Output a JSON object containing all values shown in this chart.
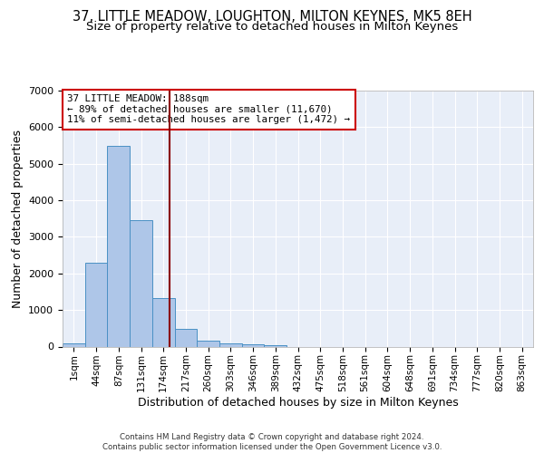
{
  "title_line1": "37, LITTLE MEADOW, LOUGHTON, MILTON KEYNES, MK5 8EH",
  "title_line2": "Size of property relative to detached houses in Milton Keynes",
  "xlabel": "Distribution of detached houses by size in Milton Keynes",
  "ylabel": "Number of detached properties",
  "annotation_title": "37 LITTLE MEADOW: 188sqm",
  "annotation_line2": "← 89% of detached houses are smaller (11,670)",
  "annotation_line3": "11% of semi-detached houses are larger (1,472) →",
  "footer_line1": "Contains HM Land Registry data © Crown copyright and database right 2024.",
  "footer_line2": "Contains public sector information licensed under the Open Government Licence v3.0.",
  "bar_color": "#aec6e8",
  "bar_edge_color": "#4a90c4",
  "bg_color": "#e8eef8",
  "grid_color": "#ffffff",
  "annotation_box_color": "#cc0000",
  "vline_color": "#8b0000",
  "categories": [
    "1sqm",
    "44sqm",
    "87sqm",
    "131sqm",
    "174sqm",
    "217sqm",
    "260sqm",
    "303sqm",
    "346sqm",
    "389sqm",
    "432sqm",
    "475sqm",
    "518sqm",
    "561sqm",
    "604sqm",
    "648sqm",
    "691sqm",
    "734sqm",
    "777sqm",
    "820sqm",
    "863sqm"
  ],
  "values": [
    80,
    2280,
    5480,
    3450,
    1320,
    480,
    160,
    80,
    55,
    30,
    0,
    0,
    0,
    0,
    0,
    0,
    0,
    0,
    0,
    0,
    0
  ],
  "ylim": [
    0,
    7000
  ],
  "yticks": [
    0,
    1000,
    2000,
    3000,
    4000,
    5000,
    6000,
    7000
  ],
  "vline_x": 4.28,
  "title_fontsize": 10.5,
  "subtitle_fontsize": 9.5,
  "axis_label_fontsize": 9,
  "tick_fontsize": 8
}
